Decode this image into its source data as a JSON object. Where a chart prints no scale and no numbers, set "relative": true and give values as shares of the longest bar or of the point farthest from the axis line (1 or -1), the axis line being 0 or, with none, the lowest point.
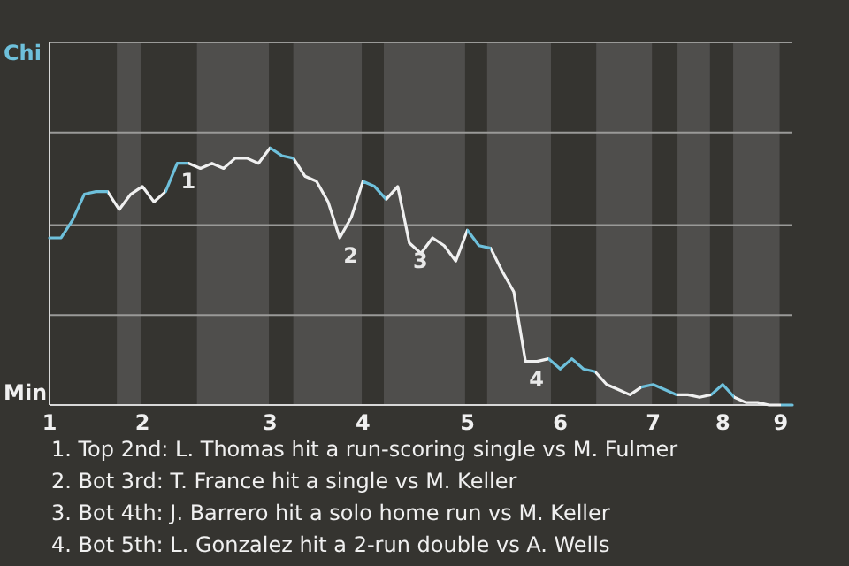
{
  "chart_data": {
    "type": "line",
    "relative": true,
    "categories": [
      "1",
      null,
      null,
      null,
      null,
      null,
      null,
      null,
      "2",
      null,
      null,
      null,
      null,
      null,
      null,
      null,
      null,
      null,
      null,
      "3",
      null,
      null,
      null,
      null,
      null,
      null,
      null,
      "4",
      null,
      null,
      null,
      null,
      null,
      null,
      null,
      null,
      "5",
      null,
      null,
      null,
      null,
      null,
      null,
      null,
      "6",
      null,
      null,
      null,
      null,
      null,
      null,
      null,
      "7",
      null,
      null,
      null,
      null,
      null,
      "8",
      null,
      null,
      null,
      null,
      "9",
      null
    ],
    "marker": "none",
    "line_style": "solid",
    "ref_lines": [
      {
        "axis": "y",
        "value": 0.35,
        "color": "#9a9a98"
      },
      {
        "axis": "y",
        "value": 0.7,
        "color": "#9a9a98"
      },
      {
        "axis": "y",
        "value": 1.06,
        "color": "#9a9a98"
      }
    ],
    "values": [
      0.65,
      0.65,
      0.72,
      0.82,
      0.83,
      0.83,
      0.76,
      0.82,
      0.85,
      0.79,
      0.83,
      0.94,
      0.94,
      0.92,
      0.94,
      0.92,
      0.96,
      0.96,
      0.94,
      1,
      0.97,
      0.96,
      0.89,
      0.87,
      0.79,
      0.65,
      0.73,
      0.87,
      0.85,
      0.8,
      0.85,
      0.63,
      0.59,
      0.65,
      0.62,
      0.56,
      0.68,
      0.62,
      0.61,
      0.52,
      0.44,
      0.17,
      0.17,
      0.18,
      0.14,
      0.18,
      0.14,
      0.13,
      0.08,
      0.06,
      0.04,
      0.07,
      0.08,
      0.06,
      0.04,
      0.04,
      0.03,
      0.04,
      0.08,
      0.03,
      0.01,
      0.01,
      0,
      0,
      0
    ],
    "colors": [
      "#6ec0db",
      "#6ec0db",
      "#6ec0db",
      "#6ec0db",
      "#6ec0db",
      "#f0f0f0",
      "#f0f0f0",
      "#f0f0f0",
      "#f0f0f0",
      "#f0f0f0",
      "#6ec0db",
      "#6ec0db",
      "#f0f0f0",
      "#f0f0f0",
      "#f0f0f0",
      "#f0f0f0",
      "#f0f0f0",
      "#f0f0f0",
      "#f0f0f0",
      "#6ec0db",
      "#6ec0db",
      "#f0f0f0",
      "#f0f0f0",
      "#f0f0f0",
      "#f0f0f0",
      "#f0f0f0",
      "#f0f0f0",
      "#6ec0db",
      "#6ec0db",
      "#f0f0f0",
      "#f0f0f0",
      "#f0f0f0",
      "#f0f0f0",
      "#f0f0f0",
      "#f0f0f0",
      "#f0f0f0",
      "#6ec0db",
      "#6ec0db",
      "#f0f0f0",
      "#f0f0f0",
      "#f0f0f0",
      "#f0f0f0",
      "#f0f0f0",
      "#6ec0db",
      "#6ec0db",
      "#6ec0db",
      "#6ec0db",
      "#f0f0f0",
      "#f0f0f0",
      "#f0f0f0",
      "#f0f0f0",
      "#6ec0db",
      "#6ec0db",
      "#6ec0db",
      "#f0f0f0",
      "#f0f0f0",
      "#f0f0f0",
      "#6ec0db",
      "#6ec0db",
      "#f0f0f0",
      "#f0f0f0",
      "#f0f0f0",
      "#f0f0f0",
      "#6ec0db",
      "#6ec0db"
    ],
    "annotations": [
      "Chi",
      "Min",
      {
        "text": "1",
        "y": 0.94
      },
      {
        "text": "2",
        "y": 0.65
      },
      {
        "text": "3",
        "y": 0.63
      },
      {
        "text": "4",
        "y": 0.17
      },
      "1. Top 2nd: L. Thomas hit a run-scoring single vs M. Fulmer",
      "2. Bot 3rd: T. France hit a single vs M. Keller",
      "3. Bot 4th: J. Barrero hit a solo home run vs M. Keller",
      "4. Bot 5th: L. Gonzalez hit a 2-run double vs A. Wells"
    ]
  }
}
